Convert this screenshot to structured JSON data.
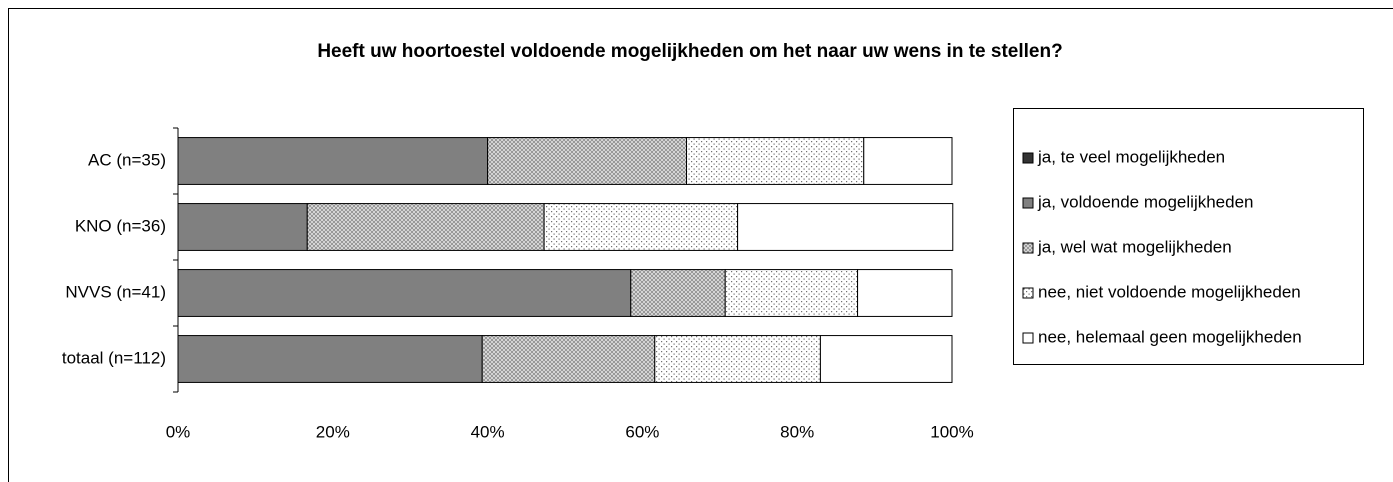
{
  "chart_data": {
    "type": "stacked_barh",
    "title": "Heeft uw hoortoestel voldoende mogelijkheden om het naar uw wens in te stellen?",
    "categories": [
      "AC (n=35)",
      "KNO (n=36)",
      "NVVS (n=41)",
      "totaal (n=112)"
    ],
    "series": [
      {
        "name": "ja, te veel mogelijkheden",
        "color": "#333333",
        "pattern": "solid",
        "values": [
          0,
          0,
          0,
          0
        ]
      },
      {
        "name": "ja, voldoende mogelijkheden",
        "color": "#808080",
        "pattern": "solid",
        "values": [
          40.0,
          16.7,
          58.5,
          39.3
        ]
      },
      {
        "name": "ja, wel wat mogelijkheden",
        "color": "#c8c8c8",
        "pattern": "crosshatch",
        "values": [
          25.7,
          30.6,
          12.2,
          22.3
        ]
      },
      {
        "name": "nee, niet voldoende mogelijkheden",
        "color": "#9a9a9a",
        "pattern": "dots",
        "values": [
          22.9,
          25.0,
          17.1,
          21.4
        ]
      },
      {
        "name": "nee, helemaal geen mogelijkheden",
        "color": "#ffffff",
        "pattern": "solid",
        "values": [
          11.4,
          27.8,
          12.2,
          17.0
        ]
      }
    ],
    "xlim": [
      0,
      100
    ],
    "xticks": [
      {
        "value": 0,
        "label": "0%"
      },
      {
        "value": 20,
        "label": "20%"
      },
      {
        "value": 40,
        "label": "40%"
      },
      {
        "value": 60,
        "label": "60%"
      },
      {
        "value": 80,
        "label": "80%"
      },
      {
        "value": 100,
        "label": "100%"
      }
    ],
    "legend": "right"
  }
}
